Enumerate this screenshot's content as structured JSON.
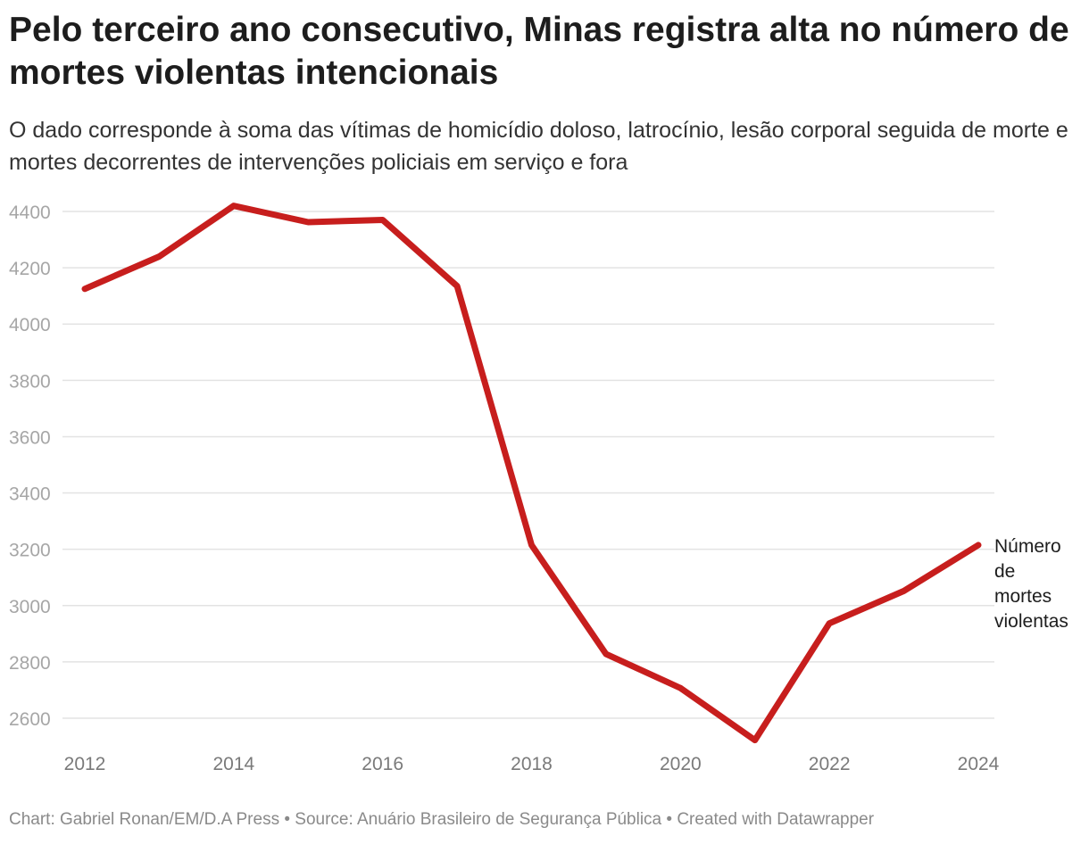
{
  "chart_data": {
    "type": "line",
    "title": "Pelo terceiro ano consecutivo, Minas registra alta no número de mortes violentas intencionais",
    "subtitle": "O dado corresponde à soma das vítimas de homicídio doloso, latrocínio, lesão corporal seguida de morte e mortes decorrentes de intervenções policiais em serviço e fora",
    "x": [
      2012,
      2013,
      2014,
      2015,
      2016,
      2017,
      2018,
      2019,
      2020,
      2021,
      2022,
      2023,
      2024
    ],
    "series": [
      {
        "name": "Número de mortes violentas",
        "label_lines": [
          "Número",
          "de",
          "mortes",
          "violentas"
        ],
        "color": "#c71e1d",
        "values": [
          4125,
          4240,
          4420,
          4362,
          4370,
          4135,
          3215,
          2828,
          2707,
          2522,
          2937,
          3052,
          3215
        ]
      }
    ],
    "xticks": [
      "2012",
      "2014",
      "2016",
      "2018",
      "2020",
      "2022",
      "2024"
    ],
    "yticks": [
      "2600",
      "2800",
      "3000",
      "3200",
      "3400",
      "3600",
      "3800",
      "4000",
      "4200",
      "4400"
    ],
    "ylim": [
      2600,
      4400
    ],
    "xlim": [
      2012,
      2024
    ],
    "xlabel": "",
    "ylabel": "",
    "grid": true,
    "legend": "inline-right"
  },
  "footer": "Chart: Gabriel Ronan/EM/D.A Press • Source: Anuário Brasileiro de Segurança Pública • Created with Datawrapper"
}
